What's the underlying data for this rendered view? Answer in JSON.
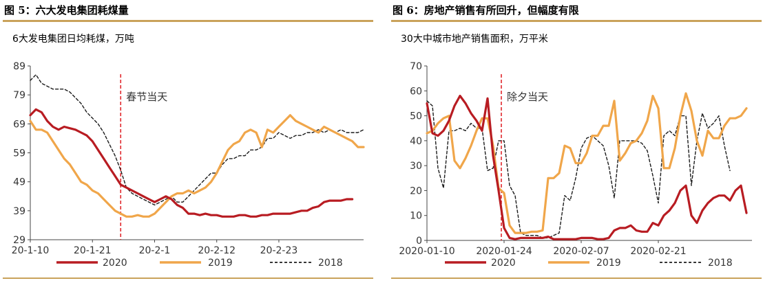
{
  "panels": [
    {
      "title": "图 5：六大发电集团耗煤量",
      "unit": "6大发电集团日均耗煤，万吨",
      "annotation": "春节当天"
    },
    {
      "title": "图 6：房地产销售有所回升，但幅度有限",
      "unit": "30大中城市地产销售面积，万平米",
      "annotation": "除夕当天"
    }
  ],
  "colors": {
    "2020": "#b81c22",
    "2019": "#f0a64a",
    "2018": "#1a1a1a",
    "rule": "#c9a25a",
    "marker": "#e0262b"
  },
  "chart_data": [
    {
      "type": "line",
      "title": "图 5：六大发电集团耗煤量",
      "ylabel": "6大发电集团日均耗煤，万吨",
      "ylim": [
        29,
        89
      ],
      "yticks": [
        29,
        39,
        49,
        59,
        69,
        79,
        89
      ],
      "xlim": [
        0,
        59
      ],
      "xticks": [
        {
          "pos": 0,
          "label": "20-1-10"
        },
        {
          "pos": 11,
          "label": "20-1-21"
        },
        {
          "pos": 22,
          "label": "20-2-1"
        },
        {
          "pos": 33,
          "label": "20-2-12"
        },
        {
          "pos": 44,
          "label": "20-2-23"
        }
      ],
      "marker_line": {
        "x": 16,
        "label": "春节当天"
      },
      "legend": "bottom",
      "grid": false,
      "series": [
        {
          "name": "2020",
          "x_start": 0,
          "values": [
            72,
            74,
            73,
            70,
            68,
            67,
            68,
            67.5,
            67,
            66,
            65,
            63,
            60,
            57,
            54,
            51,
            48,
            47,
            46,
            45,
            44,
            43,
            42,
            43,
            44,
            43,
            41,
            40,
            38,
            38,
            37.5,
            38,
            37.5,
            37.5,
            37,
            37,
            37,
            37.5,
            37.5,
            37,
            37,
            37.5,
            37.5,
            38,
            38,
            38,
            38,
            38.5,
            39,
            39,
            40,
            40.5,
            42,
            42.5,
            42.5,
            42.5,
            43,
            43
          ]
        },
        {
          "name": "2019",
          "x_start": 0,
          "values": [
            70,
            67,
            67,
            66,
            63,
            60,
            57,
            55,
            52,
            49,
            48,
            46,
            45,
            43,
            41,
            39,
            38,
            37,
            37,
            37.5,
            37,
            37,
            38,
            40,
            42,
            44,
            45,
            45,
            46,
            45,
            46,
            47,
            49,
            52,
            56,
            60,
            62,
            63,
            66,
            67,
            66,
            61,
            67,
            66,
            68,
            70,
            72,
            70,
            69,
            68,
            67,
            66,
            68,
            67,
            66,
            65,
            64,
            63,
            61,
            61
          ]
        },
        {
          "name": "2018",
          "x_start": 0,
          "values": [
            84,
            86,
            83,
            82,
            81,
            81,
            81,
            80,
            78,
            76,
            73,
            71,
            69,
            66,
            62,
            58,
            53,
            47,
            45,
            44,
            43,
            42,
            41,
            42,
            43,
            44,
            42,
            42,
            44,
            46,
            48,
            50,
            52,
            52,
            55,
            57,
            57,
            58,
            58,
            60,
            60,
            61,
            64,
            64,
            66,
            65,
            64,
            65,
            65,
            66,
            66,
            67,
            66,
            67,
            66,
            67,
            66,
            66,
            66,
            67
          ]
        }
      ]
    },
    {
      "type": "line",
      "title": "图 6：房地产销售有所回升，但幅度有限",
      "ylabel": "30大中城市地产销售面积，万平米",
      "ylim": [
        0,
        70
      ],
      "yticks": [
        0,
        10,
        20,
        30,
        40,
        50,
        60,
        70
      ],
      "xlim": [
        0,
        59
      ],
      "xticks": [
        {
          "pos": 0,
          "label": "2020-01-10"
        },
        {
          "pos": 14,
          "label": "2020-01-24"
        },
        {
          "pos": 28,
          "label": "2020-02-07"
        },
        {
          "pos": 42,
          "label": "2020-02-21"
        }
      ],
      "marker_line": {
        "x": 13.5,
        "label": "除夕当天"
      },
      "legend": "bottom",
      "grid": false,
      "series": [
        {
          "name": "2020",
          "x_start": 0,
          "values": [
            55,
            43,
            42,
            44,
            48,
            54,
            58,
            55,
            51,
            48,
            44,
            57,
            34,
            20,
            5,
            1,
            0.5,
            1,
            1,
            1,
            1,
            1,
            1.5,
            0.5,
            0.5,
            0.5,
            0.5,
            0.5,
            1,
            1,
            1,
            0.5,
            0.5,
            1,
            4,
            5,
            5,
            6,
            4,
            3.5,
            3.5,
            7,
            6,
            10,
            12,
            15,
            20,
            22,
            10,
            7,
            12,
            15,
            17,
            18,
            18,
            16,
            20,
            22,
            11
          ]
        },
        {
          "name": "2019",
          "x_start": 0,
          "values": [
            43,
            44,
            47,
            49,
            50,
            32,
            29,
            33,
            38,
            44,
            49,
            49,
            38,
            21,
            19,
            6,
            3,
            3,
            3,
            3.5,
            3.5,
            4,
            25,
            25,
            27,
            38,
            37,
            31,
            31,
            35,
            42,
            42,
            46,
            46,
            56,
            32,
            35,
            39,
            40,
            43,
            48,
            58,
            53,
            29,
            29,
            37,
            50,
            59,
            52,
            40,
            34,
            44,
            41,
            41,
            46,
            49,
            49,
            50,
            53
          ]
        },
        {
          "name": "2018",
          "x_start": 0,
          "values": [
            56,
            54,
            29,
            21,
            44,
            44,
            45,
            44,
            47,
            45,
            45,
            28,
            29,
            40,
            40,
            22,
            18,
            3,
            2,
            2,
            2,
            1,
            1,
            2,
            3,
            18,
            16,
            25,
            37,
            41,
            42,
            40,
            38,
            30,
            17,
            40,
            40,
            40,
            40,
            39,
            36,
            26,
            15,
            42,
            44,
            42,
            50,
            50,
            22,
            40,
            51,
            45,
            47,
            50,
            38,
            28
          ]
        }
      ]
    }
  ]
}
